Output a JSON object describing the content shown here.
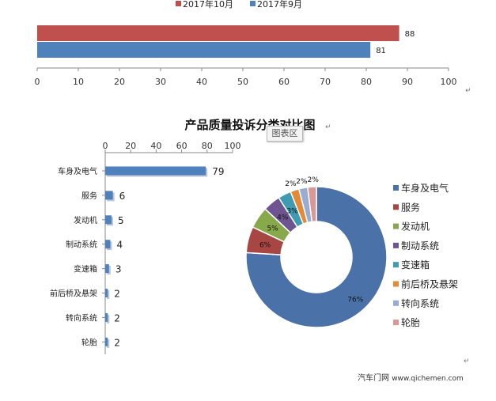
{
  "chart_data": [
    {
      "type": "bar",
      "orientation": "horizontal",
      "series": [
        {
          "name": "2017年10月",
          "values": [
            88
          ],
          "color": "#c0504d"
        },
        {
          "name": "2017年9月",
          "values": [
            81
          ],
          "color": "#4f81bd"
        }
      ],
      "xlim": [
        0,
        100
      ],
      "xticks": [
        0,
        10,
        20,
        30,
        40,
        50,
        60,
        70,
        80,
        90,
        100
      ],
      "legend": "top"
    },
    {
      "type": "bar",
      "orientation": "horizontal",
      "title": "产品质量投诉分类对比图",
      "categories": [
        "车身及电气",
        "服务",
        "发动机",
        "制动系统",
        "变速箱",
        "前后桥及悬架",
        "转向系统",
        "轮胎"
      ],
      "values": [
        79,
        6,
        5,
        4,
        3,
        2,
        2,
        2
      ],
      "xlim": [
        0,
        100
      ],
      "xticks": [
        0,
        20,
        40,
        60,
        80,
        100
      ],
      "axis_position": "top",
      "color": "#4f81bd"
    },
    {
      "type": "pie",
      "style": "donut",
      "categories": [
        "车身及电气",
        "服务",
        "发动机",
        "制动系统",
        "变速箱",
        "前后桥及悬架",
        "转向系统",
        "轮胎"
      ],
      "values": [
        76,
        6,
        5,
        4,
        3,
        2,
        2,
        2
      ],
      "labels": [
        "76%",
        "6%",
        "5%",
        "4%",
        "3%",
        "2%",
        "2%",
        "2%"
      ],
      "colors": [
        "#4a72a8",
        "#a84643",
        "#88a94a",
        "#6e5592",
        "#3e9bb1",
        "#e48a36",
        "#96acd1",
        "#d99795"
      ],
      "legend": "right"
    }
  ],
  "tooltip": "图表区",
  "footer": {
    "brand": "汽车门网",
    "site": "www.qichemen.com"
  },
  "newline_mark": "↵"
}
